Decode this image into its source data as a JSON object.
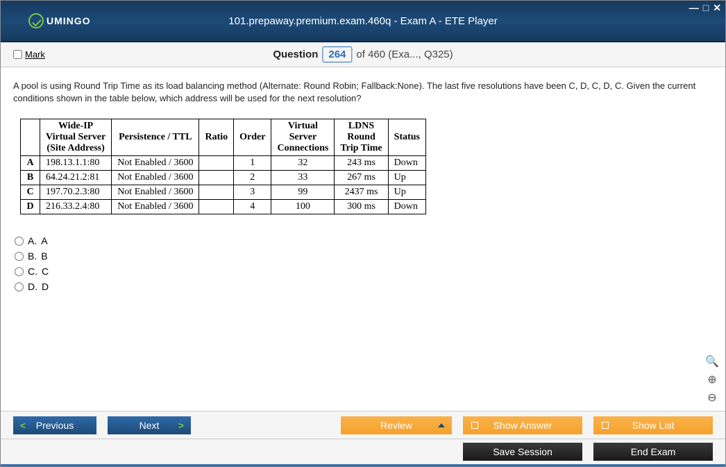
{
  "window": {
    "title": "101.prepaway.premium.exam.460q - Exam A - ETE Player",
    "logo_text": "UMINGO"
  },
  "toolbar": {
    "mark_label": "Mark",
    "question_label": "Question",
    "question_number": "264",
    "of_text": "of 460 (Exa..., Q325)"
  },
  "question": {
    "text": "A pool is using Round Trip Time as its load balancing method (Alternate: Round Robin; Fallback:None). The last five resolutions have been C, D, C, D, C. Given the current conditions shown in the table below, which address will be used for the next resolution?"
  },
  "table": {
    "headers": {
      "col1": "Wide-IP\nVirtual Server\n(Site Address)",
      "col2": "Persistence / TTL",
      "col3": "Ratio",
      "col4": "Order",
      "col5": "Virtual\nServer\nConnections",
      "col6": "LDNS\nRound\nTrip Time",
      "col7": "Status"
    },
    "rows": [
      {
        "label": "A",
        "addr": "198.13.1.1:80",
        "pers": "Not Enabled / 3600",
        "ratio": "",
        "order": "1",
        "conn": "32",
        "rtt": "243 ms",
        "status": "Down"
      },
      {
        "label": "B",
        "addr": "64.24.21.2:81",
        "pers": "Not Enabled / 3600",
        "ratio": "",
        "order": "2",
        "conn": "33",
        "rtt": "267 ms",
        "status": "Up"
      },
      {
        "label": "C",
        "addr": "197.70.2.3:80",
        "pers": "Not Enabled / 3600",
        "ratio": "",
        "order": "3",
        "conn": "99",
        "rtt": "2437 ms",
        "status": "Up"
      },
      {
        "label": "D",
        "addr": "216.33.2.4:80",
        "pers": "Not Enabled / 3600",
        "ratio": "",
        "order": "4",
        "conn": "100",
        "rtt": "300 ms",
        "status": "Down"
      }
    ]
  },
  "options": [
    {
      "letter": "A.",
      "text": "A"
    },
    {
      "letter": "B.",
      "text": "B"
    },
    {
      "letter": "C.",
      "text": "C"
    },
    {
      "letter": "D.",
      "text": "D"
    }
  ],
  "footer": {
    "previous": "Previous",
    "next": "Next",
    "review": "Review",
    "show_answer": "Show Answer",
    "show_list": "Show List",
    "save_session": "Save Session",
    "end_exam": "End Exam"
  }
}
